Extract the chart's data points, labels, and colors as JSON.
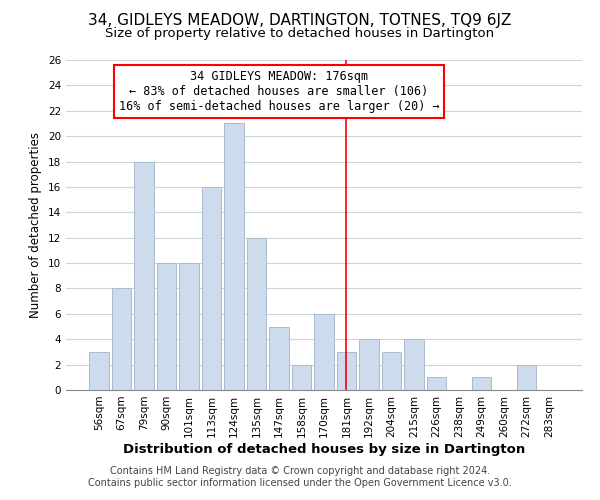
{
  "title": "34, GIDLEYS MEADOW, DARTINGTON, TOTNES, TQ9 6JZ",
  "subtitle": "Size of property relative to detached houses in Dartington",
  "xlabel": "Distribution of detached houses by size in Dartington",
  "ylabel": "Number of detached properties",
  "bar_labels": [
    "56sqm",
    "67sqm",
    "79sqm",
    "90sqm",
    "101sqm",
    "113sqm",
    "124sqm",
    "135sqm",
    "147sqm",
    "158sqm",
    "170sqm",
    "181sqm",
    "192sqm",
    "204sqm",
    "215sqm",
    "226sqm",
    "238sqm",
    "249sqm",
    "260sqm",
    "272sqm",
    "283sqm"
  ],
  "bar_heights": [
    3,
    8,
    18,
    10,
    10,
    16,
    21,
    12,
    5,
    2,
    6,
    3,
    4,
    3,
    4,
    1,
    0,
    1,
    0,
    2,
    0
  ],
  "bar_color": "#ccdcec",
  "bar_edge_color": "#aabccc",
  "grid_color": "#ccd4dc",
  "annotation_line_x_label": "181sqm",
  "annotation_line_color": "red",
  "annotation_box_text": "34 GIDLEYS MEADOW: 176sqm\n← 83% of detached houses are smaller (106)\n16% of semi-detached houses are larger (20) →",
  "annotation_box_facecolor": "white",
  "annotation_box_edgecolor": "red",
  "ylim": [
    0,
    26
  ],
  "yticks": [
    0,
    2,
    4,
    6,
    8,
    10,
    12,
    14,
    16,
    18,
    20,
    22,
    24,
    26
  ],
  "footer_line1": "Contains HM Land Registry data © Crown copyright and database right 2024.",
  "footer_line2": "Contains public sector information licensed under the Open Government Licence v3.0.",
  "title_fontsize": 11,
  "subtitle_fontsize": 9.5,
  "xlabel_fontsize": 9.5,
  "ylabel_fontsize": 8.5,
  "tick_fontsize": 7.5,
  "footer_fontsize": 7,
  "annot_fontsize": 8.5
}
